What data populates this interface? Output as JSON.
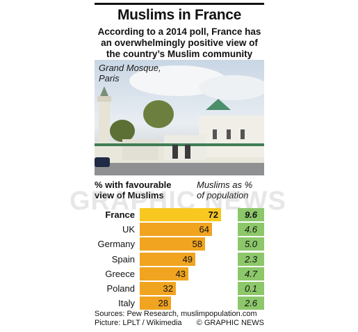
{
  "header": {
    "title": "Muslims in France",
    "subtitle": "According to a 2014 poll, France has an overwhelmingly positive view of the country’s Muslim community"
  },
  "photo": {
    "caption_line1": "Grand Mosque,",
    "caption_line2": "Paris"
  },
  "columns": {
    "favourable_line1": "% with favourable",
    "favourable_line2": "view of Muslims",
    "population_line1": "Muslims as %",
    "population_line2": "of population"
  },
  "watermark": "GRAPHIC NEWS",
  "chart_data": {
    "type": "bar",
    "orientation": "horizontal",
    "categories": [
      "France",
      "UK",
      "Germany",
      "Spain",
      "Greece",
      "Poland",
      "Italy"
    ],
    "series": [
      {
        "name": "% with favourable view of Muslims",
        "values": [
          72,
          64,
          58,
          49,
          43,
          32,
          28
        ]
      },
      {
        "name": "Muslims as % of population",
        "values": [
          9.6,
          4.6,
          5.0,
          2.3,
          4.7,
          0.1,
          2.6
        ]
      }
    ],
    "value_labels": [
      "72",
      "64",
      "58",
      "49",
      "43",
      "32",
      "28"
    ],
    "population_labels": [
      "9.6",
      "4.6",
      "5.0",
      "2.3",
      "4.7",
      "0.1",
      "2.6"
    ],
    "highlight": "France",
    "xlim": [
      0,
      85
    ]
  },
  "footer": {
    "sources": "Sources: Pew Research, muslimpopulation.com",
    "picture": "Picture: LPLT / Wikimedia",
    "copyright": "© GRAPHIC NEWS"
  },
  "colors": {
    "bar": "#f0a420",
    "bar_highlight": "#f8c820",
    "population": "#8cc76a"
  }
}
